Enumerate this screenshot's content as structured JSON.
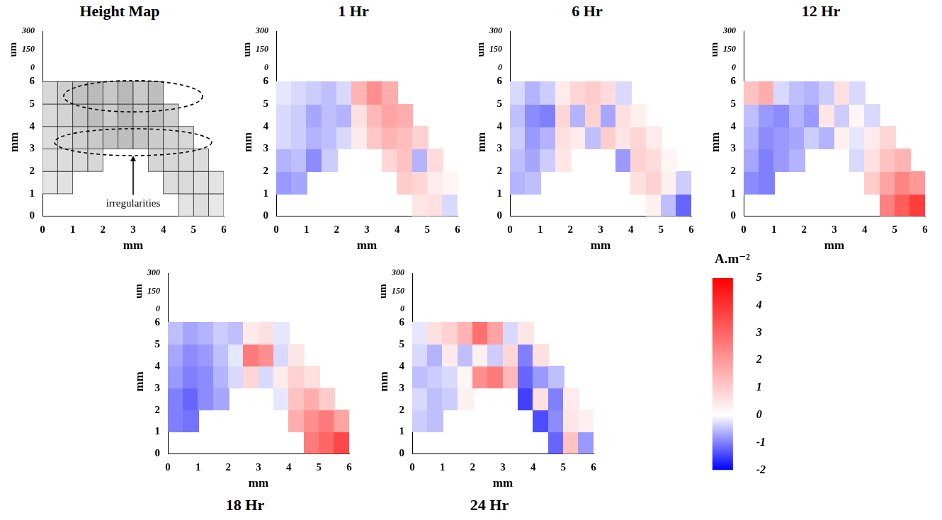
{
  "chart_data": [
    {
      "type": "wireframe",
      "title": "Height Map",
      "x_label": "mm",
      "y_label": "mm",
      "z_label": "um",
      "xlim": [
        0,
        6
      ],
      "xticks": [
        0,
        1,
        2,
        3,
        4,
        5,
        6
      ],
      "ylim": [
        0,
        6.6
      ],
      "yticks": [
        0,
        1,
        2,
        3,
        4,
        5,
        6
      ],
      "zlim": [
        0,
        300
      ],
      "zticks": [
        0,
        150,
        300
      ],
      "x": [
        0.25,
        0.75,
        1.25,
        1.75,
        2.25,
        2.75,
        3.25,
        3.75,
        4.25,
        4.75,
        5.25,
        5.75
      ],
      "y": [
        0.5,
        1.5,
        2.5,
        3.5,
        4.5,
        5.5
      ],
      "cells": [
        [
          null,
          null,
          null,
          null,
          null,
          null,
          null,
          null,
          null,
          120,
          140,
          100
        ],
        [
          110,
          130,
          null,
          null,
          null,
          null,
          null,
          null,
          150,
          160,
          140,
          120
        ],
        [
          140,
          150,
          160,
          170,
          null,
          null,
          null,
          180,
          170,
          160,
          150,
          null
        ],
        [
          150,
          170,
          200,
          230,
          260,
          280,
          250,
          220,
          190,
          170,
          null,
          null
        ],
        [
          160,
          190,
          240,
          280,
          220,
          300,
          240,
          270,
          200,
          null,
          null,
          null
        ],
        [
          170,
          210,
          260,
          290,
          240,
          300,
          230,
          280,
          null,
          null,
          null,
          null
        ]
      ],
      "annotation": "irregularities"
    },
    {
      "type": "heatmap",
      "title": "1 Hr",
      "x_label": "mm",
      "y_label": "mm",
      "z_label": "um",
      "xlim": [
        0,
        6
      ],
      "xticks": [
        0,
        1,
        2,
        3,
        4,
        5,
        6
      ],
      "ylim": [
        0,
        6.6
      ],
      "yticks": [
        0,
        1,
        2,
        3,
        4,
        5,
        6
      ],
      "zlim": [
        0,
        300
      ],
      "zticks": [
        0,
        150,
        300
      ],
      "x": [
        0.25,
        0.75,
        1.25,
        1.75,
        2.25,
        2.75,
        3.25,
        3.75,
        4.25,
        4.75,
        5.25,
        5.75
      ],
      "y": [
        0.5,
        1.5,
        2.5,
        3.5,
        4.5,
        5.5
      ],
      "cells": [
        [
          null,
          null,
          null,
          null,
          null,
          null,
          null,
          null,
          null,
          0.5,
          0.6,
          -0.3
        ],
        [
          -0.8,
          -0.7,
          null,
          null,
          null,
          null,
          null,
          null,
          1.0,
          0.8,
          0.4,
          0.2
        ],
        [
          -0.6,
          -0.5,
          -0.9,
          -0.4,
          null,
          null,
          null,
          0.8,
          1.2,
          -0.6,
          0.7,
          null
        ],
        [
          -0.3,
          -0.4,
          -0.6,
          -0.5,
          -0.3,
          0.4,
          1.1,
          1.5,
          1.3,
          0.9,
          null,
          null
        ],
        [
          -0.3,
          -0.4,
          -0.7,
          -0.5,
          -0.6,
          0.6,
          1.4,
          1.8,
          1.6,
          null,
          null,
          null
        ],
        [
          -0.2,
          -0.3,
          -0.4,
          -0.5,
          -0.3,
          1.5,
          2.2,
          1.6,
          null,
          null,
          null,
          null
        ]
      ]
    },
    {
      "type": "heatmap",
      "title": "6 Hr",
      "x_label": "mm",
      "y_label": "mm",
      "z_label": "um",
      "xlim": [
        0,
        6
      ],
      "xticks": [
        0,
        1,
        2,
        3,
        4,
        5,
        6
      ],
      "ylim": [
        0,
        6.6
      ],
      "yticks": [
        0,
        1,
        2,
        3,
        4,
        5,
        6
      ],
      "zlim": [
        0,
        300
      ],
      "zticks": [
        0,
        150,
        300
      ],
      "x": [
        0.25,
        0.75,
        1.25,
        1.75,
        2.25,
        2.75,
        3.25,
        3.75,
        4.25,
        4.75,
        5.25,
        5.75
      ],
      "y": [
        0.5,
        1.5,
        2.5,
        3.5,
        4.5,
        5.5
      ],
      "cells": [
        [
          null,
          null,
          null,
          null,
          null,
          null,
          null,
          null,
          null,
          0.3,
          -0.5,
          -1.2
        ],
        [
          -0.6,
          -0.5,
          null,
          null,
          null,
          null,
          null,
          null,
          0.6,
          0.9,
          0.3,
          -0.4
        ],
        [
          -0.5,
          -0.7,
          -0.4,
          0.5,
          null,
          null,
          null,
          -0.8,
          0.9,
          0.7,
          0.2,
          null
        ],
        [
          -0.4,
          -0.8,
          -0.6,
          0.6,
          0.4,
          -0.5,
          1.0,
          0.5,
          0.8,
          0.4,
          null,
          null
        ],
        [
          -0.5,
          -0.9,
          -1.0,
          0.8,
          -0.6,
          0.9,
          -0.7,
          0.6,
          0.3,
          null,
          null,
          null
        ],
        [
          -0.3,
          -0.6,
          -0.4,
          0.4,
          0.8,
          1.0,
          0.7,
          -0.3,
          null,
          null,
          null,
          null
        ]
      ]
    },
    {
      "type": "heatmap",
      "title": "12 Hr",
      "x_label": "mm",
      "y_label": "mm",
      "z_label": "um",
      "xlim": [
        0,
        6
      ],
      "xticks": [
        0,
        1,
        2,
        3,
        4,
        5,
        6
      ],
      "ylim": [
        0,
        6.6
      ],
      "yticks": [
        0,
        1,
        2,
        3,
        4,
        5,
        6
      ],
      "zlim": [
        0,
        300
      ],
      "zticks": [
        0,
        150,
        300
      ],
      "x": [
        0.25,
        0.75,
        1.25,
        1.75,
        2.25,
        2.75,
        3.25,
        3.75,
        4.25,
        4.75,
        5.25,
        5.75
      ],
      "y": [
        0.5,
        1.5,
        2.5,
        3.5,
        4.5,
        5.5
      ],
      "cells": [
        [
          null,
          null,
          null,
          null,
          null,
          null,
          null,
          null,
          null,
          2.5,
          3.2,
          3.8
        ],
        [
          -0.9,
          -1.0,
          null,
          null,
          null,
          null,
          null,
          null,
          1.0,
          1.8,
          2.4,
          2.0
        ],
        [
          -0.7,
          -1.0,
          -0.8,
          -0.6,
          null,
          null,
          null,
          -0.3,
          0.6,
          1.2,
          1.5,
          null
        ],
        [
          -0.6,
          -0.9,
          -0.8,
          -0.7,
          -0.4,
          -0.6,
          0.3,
          -0.2,
          0.4,
          0.8,
          null,
          null
        ],
        [
          -0.5,
          -0.8,
          -0.9,
          -0.6,
          -0.8,
          0.5,
          -0.4,
          0.2,
          -0.3,
          null,
          null,
          null
        ],
        [
          1.2,
          1.6,
          -0.3,
          -0.5,
          -0.6,
          -0.4,
          0.6,
          -0.3,
          null,
          null,
          null,
          null
        ]
      ]
    },
    {
      "type": "heatmap",
      "title": "18 Hr",
      "x_label": "mm",
      "y_label": "mm",
      "z_label": "um",
      "xlim": [
        0,
        6
      ],
      "xticks": [
        0,
        1,
        2,
        3,
        4,
        5,
        6
      ],
      "ylim": [
        0,
        6.6
      ],
      "yticks": [
        0,
        1,
        2,
        3,
        4,
        5,
        6
      ],
      "zlim": [
        0,
        300
      ],
      "zticks": [
        0,
        150,
        300
      ],
      "x": [
        0.25,
        0.75,
        1.25,
        1.75,
        2.25,
        2.75,
        3.25,
        3.75,
        4.25,
        4.75,
        5.25,
        5.75
      ],
      "y": [
        0.5,
        1.5,
        2.5,
        3.5,
        4.5,
        5.5
      ],
      "cells": [
        [
          null,
          null,
          null,
          null,
          null,
          null,
          null,
          null,
          null,
          2.6,
          3.0,
          3.6
        ],
        [
          -1.0,
          -1.1,
          null,
          null,
          null,
          null,
          null,
          null,
          1.6,
          2.2,
          2.6,
          1.8
        ],
        [
          -1.0,
          -1.2,
          -0.9,
          -0.7,
          null,
          null,
          null,
          -0.2,
          1.2,
          1.6,
          1.0,
          null
        ],
        [
          -0.8,
          -1.0,
          -0.9,
          -0.6,
          -0.3,
          0.8,
          -0.3,
          0.4,
          0.9,
          0.6,
          null,
          null
        ],
        [
          -0.7,
          -0.9,
          -0.8,
          -0.5,
          -0.2,
          2.6,
          2.2,
          -0.3,
          0.5,
          null,
          null,
          null
        ],
        [
          -0.5,
          -0.7,
          -0.6,
          -0.4,
          -0.5,
          0.4,
          0.6,
          -0.2,
          null,
          null,
          null,
          null
        ]
      ]
    },
    {
      "type": "heatmap",
      "title": "24 Hr",
      "x_label": "mm",
      "y_label": "mm",
      "z_label": "um",
      "xlim": [
        0,
        6
      ],
      "xticks": [
        0,
        1,
        2,
        3,
        4,
        5,
        6
      ],
      "ylim": [
        0,
        6.6
      ],
      "yticks": [
        0,
        1,
        2,
        3,
        4,
        5,
        6
      ],
      "zlim": [
        0,
        300
      ],
      "zticks": [
        0,
        150,
        300
      ],
      "x": [
        0.25,
        0.75,
        1.25,
        1.75,
        2.25,
        2.75,
        3.25,
        3.75,
        4.25,
        4.75,
        5.25,
        5.75
      ],
      "y": [
        0.5,
        1.5,
        2.5,
        3.5,
        4.5,
        5.5
      ],
      "cells": [
        [
          null,
          null,
          null,
          null,
          null,
          null,
          null,
          null,
          null,
          -1.2,
          1.2,
          -0.8
        ],
        [
          -0.4,
          -0.5,
          null,
          null,
          null,
          null,
          null,
          null,
          -1.4,
          -0.9,
          0.5,
          0.3
        ],
        [
          -0.3,
          -0.5,
          -0.4,
          0.3,
          null,
          null,
          null,
          -1.5,
          0.6,
          -1.0,
          0.4,
          null
        ],
        [
          -0.5,
          -0.4,
          -0.3,
          0.2,
          2.2,
          2.6,
          1.4,
          -1.2,
          -0.8,
          -0.5,
          null,
          null
        ],
        [
          -0.3,
          -0.6,
          0.4,
          -0.5,
          0.3,
          -0.4,
          0.8,
          -1.0,
          0.6,
          null,
          null,
          null
        ],
        [
          -0.2,
          0.6,
          0.9,
          1.5,
          2.8,
          1.8,
          -0.3,
          0.5,
          null,
          null,
          null,
          null
        ]
      ]
    }
  ],
  "color_bar": {
    "title": "A.m⁻²",
    "lim": [
      -2,
      5
    ],
    "ticks": [
      -2,
      -1,
      0,
      1,
      2,
      3,
      4,
      5
    ]
  }
}
